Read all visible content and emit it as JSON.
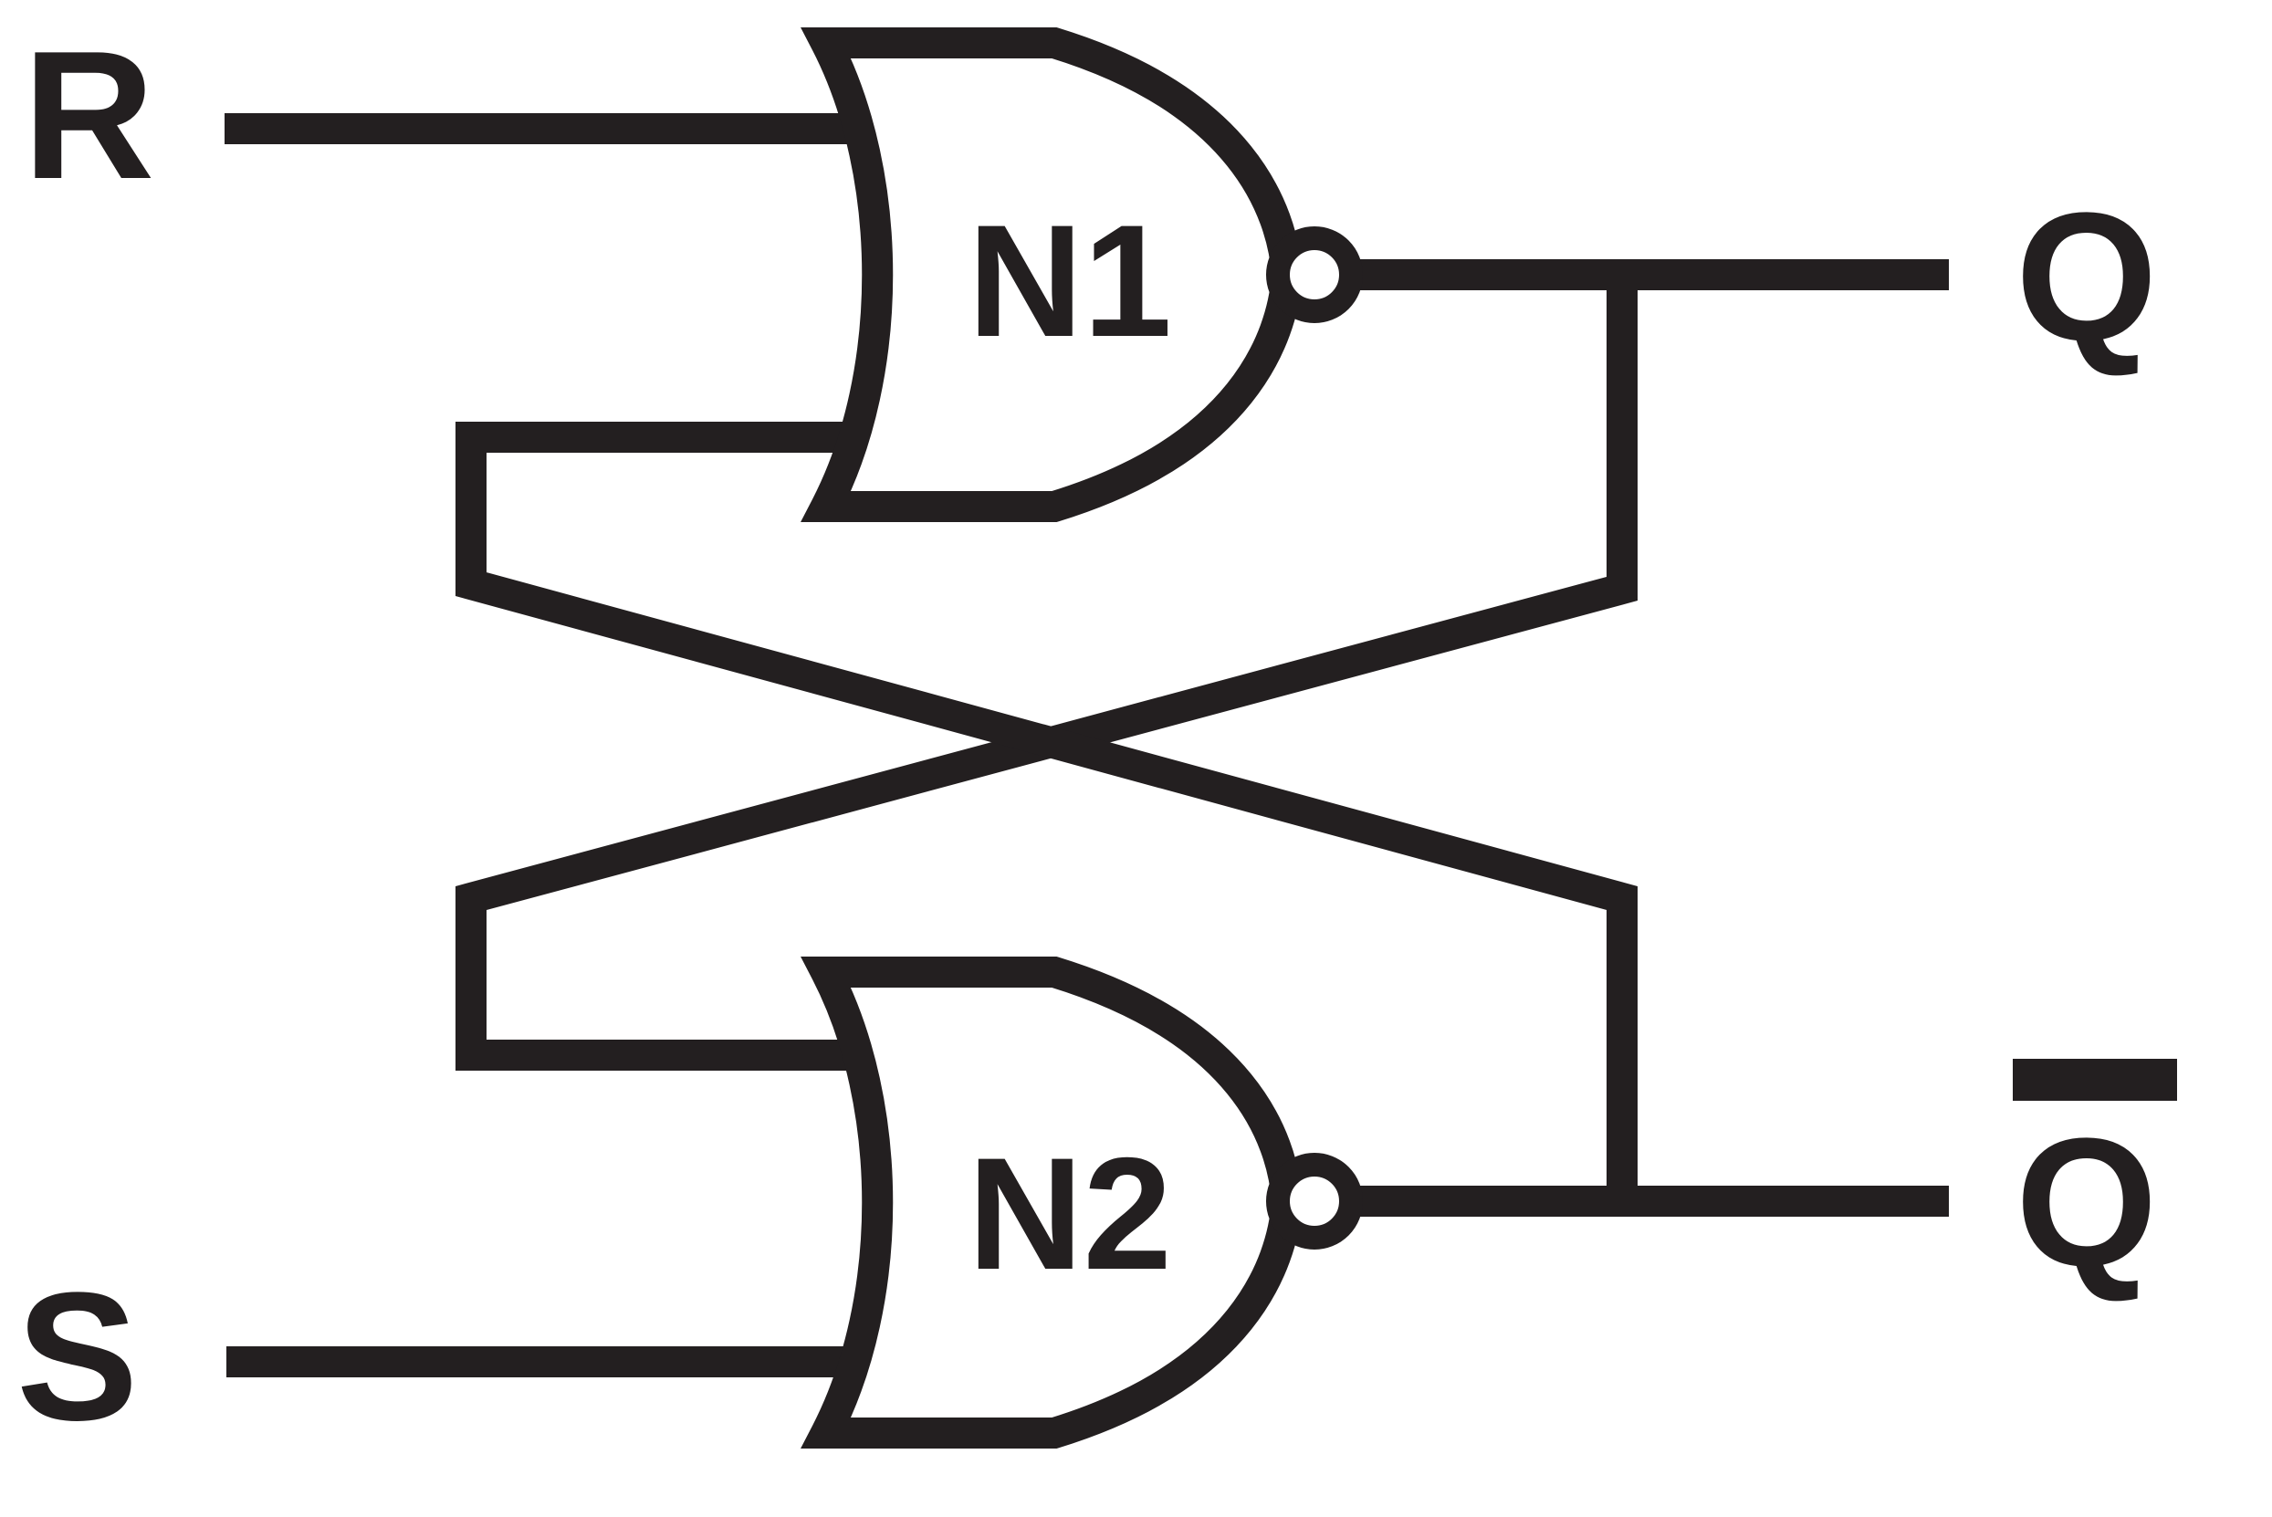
{
  "labels": {
    "r": "R",
    "s": "S",
    "q": "Q",
    "q_bar": "Q"
  },
  "gates": [
    {
      "name": "N1",
      "type": "NOR"
    },
    {
      "name": "N2",
      "type": "NOR"
    }
  ],
  "colors": {
    "ink": "#231f20",
    "background": "#ffffff"
  }
}
